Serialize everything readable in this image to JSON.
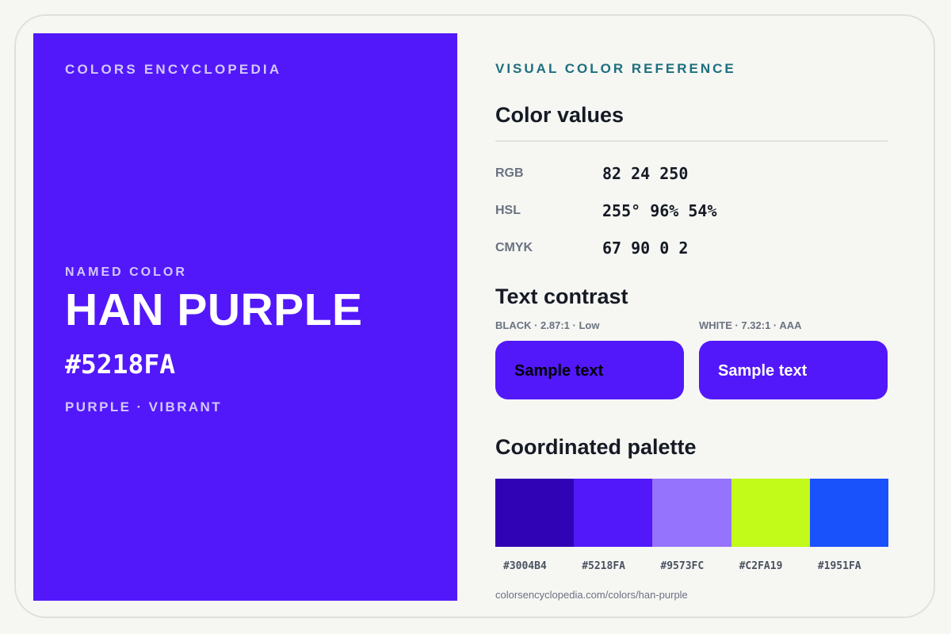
{
  "hero": {
    "brand": "COLORS ENCYCLOPEDIA",
    "named_label": "NAMED COLOR",
    "name": "HAN PURPLE",
    "hex": "#5218FA",
    "tags": "PURPLE · VIBRANT",
    "background_color": "#5218fa"
  },
  "panel": {
    "eyebrow": "VISUAL COLOR REFERENCE",
    "values_title": "Color values",
    "values": [
      {
        "key": "RGB",
        "value": "82 24 250"
      },
      {
        "key": "HSL",
        "value": "255° 96% 54%"
      },
      {
        "key": "CMYK",
        "value": "67 90 0 2"
      }
    ],
    "contrast_title": "Text contrast",
    "contrast": [
      {
        "label": "BLACK · 2.87:1 · Low",
        "sample": "Sample text",
        "text_color": "#000000"
      },
      {
        "label": "WHITE · 7.32:1 · AAA",
        "sample": "Sample text",
        "text_color": "#ffffff"
      }
    ],
    "palette_title": "Coordinated palette",
    "palette": [
      {
        "hex": "#3004B4",
        "color": "#3004b4"
      },
      {
        "hex": "#5218FA",
        "color": "#5218fa"
      },
      {
        "hex": "#9573FC",
        "color": "#9573fc"
      },
      {
        "hex": "#C2FA19",
        "color": "#c2fa19"
      },
      {
        "hex": "#1951FA",
        "color": "#1951fa"
      }
    ],
    "url": "colorsencyclopedia.com/colors/han-purple"
  }
}
